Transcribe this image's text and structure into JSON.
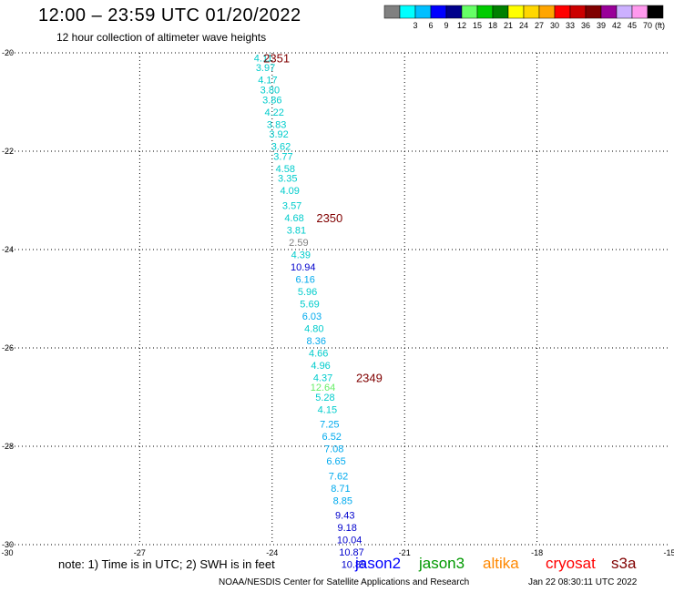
{
  "header": {
    "title": "12:00 – 23:59 UTC 01/20/2022",
    "subtitle": "12 hour collection of altimeter wave heights"
  },
  "colorbar": {
    "unit": "(ft)",
    "bins": [
      {
        "color": "#808080",
        "label": ""
      },
      {
        "color": "#00ffff",
        "label": "3"
      },
      {
        "color": "#00bfff",
        "label": "6"
      },
      {
        "color": "#0000ff",
        "label": "9"
      },
      {
        "color": "#00008b",
        "label": "12"
      },
      {
        "color": "#66ff66",
        "label": "15"
      },
      {
        "color": "#00cc00",
        "label": "18"
      },
      {
        "color": "#008000",
        "label": "21"
      },
      {
        "color": "#ffff00",
        "label": "24"
      },
      {
        "color": "#ffd700",
        "label": "27"
      },
      {
        "color": "#ffa500",
        "label": "30"
      },
      {
        "color": "#ff0000",
        "label": "33"
      },
      {
        "color": "#cc0000",
        "label": "36"
      },
      {
        "color": "#800000",
        "label": "39"
      },
      {
        "color": "#990099",
        "label": "42"
      },
      {
        "color": "#ccb0ff",
        "label": "45"
      },
      {
        "color": "#ff99ee",
        "label": "70"
      },
      {
        "color": "#000000",
        "label": ""
      }
    ]
  },
  "chart_data": {
    "type": "scatter",
    "xlim": [
      -30,
      -15
    ],
    "ylim": [
      -30,
      -20
    ],
    "xticks": [
      -30,
      -27,
      -24,
      -21,
      -18,
      -15
    ],
    "yticks": [
      -30,
      -28,
      -26,
      -24,
      -22,
      -20
    ],
    "grid": true,
    "points": [
      {
        "lon": -24.2,
        "lat": -20.1,
        "label": "4.11",
        "color": "#00cccc"
      },
      {
        "lon": -24.15,
        "lat": -20.3,
        "label": "3.97",
        "color": "#00cccc"
      },
      {
        "lon": -24.1,
        "lat": -20.55,
        "label": "4.17",
        "color": "#00cccc"
      },
      {
        "lon": -24.05,
        "lat": -20.75,
        "label": "3.80",
        "color": "#00cccc"
      },
      {
        "lon": -24.0,
        "lat": -20.95,
        "label": "3.86",
        "color": "#00cccc"
      },
      {
        "lon": -23.95,
        "lat": -21.2,
        "label": "4.22",
        "color": "#00cccc"
      },
      {
        "lon": -23.9,
        "lat": -21.45,
        "label": "3.83",
        "color": "#00cccc"
      },
      {
        "lon": -23.85,
        "lat": -21.65,
        "label": "3.92",
        "color": "#00cccc"
      },
      {
        "lon": -23.8,
        "lat": -21.9,
        "label": "3.62",
        "color": "#00cccc"
      },
      {
        "lon": -23.75,
        "lat": -22.1,
        "label": "3.77",
        "color": "#00cccc"
      },
      {
        "lon": -23.7,
        "lat": -22.35,
        "label": "4.58",
        "color": "#00cccc"
      },
      {
        "lon": -23.65,
        "lat": -22.55,
        "label": "3.35",
        "color": "#00cccc"
      },
      {
        "lon": -23.6,
        "lat": -22.8,
        "label": "4.09",
        "color": "#00cccc"
      },
      {
        "lon": -23.55,
        "lat": -23.1,
        "label": "3.57",
        "color": "#00cccc"
      },
      {
        "lon": -23.5,
        "lat": -23.35,
        "label": "4.68",
        "color": "#00cccc"
      },
      {
        "lon": -23.45,
        "lat": -23.6,
        "label": "3.81",
        "color": "#00cccc"
      },
      {
        "lon": -23.4,
        "lat": -23.85,
        "label": "2.59",
        "color": "#808080"
      },
      {
        "lon": -23.35,
        "lat": -24.1,
        "label": "4.39",
        "color": "#00cccc"
      },
      {
        "lon": -23.3,
        "lat": -24.35,
        "label": "10.94",
        "color": "#0000cc"
      },
      {
        "lon": -23.25,
        "lat": -24.6,
        "label": "6.16",
        "color": "#00aaee"
      },
      {
        "lon": -23.2,
        "lat": -24.85,
        "label": "5.96",
        "color": "#00cccc"
      },
      {
        "lon": -23.15,
        "lat": -25.1,
        "label": "5.69",
        "color": "#00cccc"
      },
      {
        "lon": -23.1,
        "lat": -25.35,
        "label": "6.03",
        "color": "#00aaee"
      },
      {
        "lon": -23.05,
        "lat": -25.6,
        "label": "4.80",
        "color": "#00cccc"
      },
      {
        "lon": -23.0,
        "lat": -25.85,
        "label": "8.36",
        "color": "#00aaee"
      },
      {
        "lon": -22.95,
        "lat": -26.1,
        "label": "4.66",
        "color": "#00cccc"
      },
      {
        "lon": -22.9,
        "lat": -26.35,
        "label": "4.96",
        "color": "#00cccc"
      },
      {
        "lon": -22.85,
        "lat": -26.6,
        "label": "4.37",
        "color": "#00cccc"
      },
      {
        "lon": -22.85,
        "lat": -26.8,
        "label": "12.64",
        "color": "#66ee66"
      },
      {
        "lon": -22.8,
        "lat": -27.0,
        "label": "5.28",
        "color": "#00cccc"
      },
      {
        "lon": -22.75,
        "lat": -27.25,
        "label": "4.15",
        "color": "#00cccc"
      },
      {
        "lon": -22.7,
        "lat": -27.55,
        "label": "7.25",
        "color": "#00aaee"
      },
      {
        "lon": -22.65,
        "lat": -27.8,
        "label": "6.52",
        "color": "#00aaee"
      },
      {
        "lon": -22.6,
        "lat": -28.05,
        "label": "7.08",
        "color": "#00aaee"
      },
      {
        "lon": -22.55,
        "lat": -28.3,
        "label": "6.65",
        "color": "#00aaee"
      },
      {
        "lon": -22.5,
        "lat": -28.6,
        "label": "7.62",
        "color": "#00aaee"
      },
      {
        "lon": -22.45,
        "lat": -28.85,
        "label": "8.71",
        "color": "#00aaee"
      },
      {
        "lon": -22.4,
        "lat": -29.1,
        "label": "8.85",
        "color": "#00aaee"
      },
      {
        "lon": -22.35,
        "lat": -29.4,
        "label": "9.43",
        "color": "#0000cc"
      },
      {
        "lon": -22.3,
        "lat": -29.65,
        "label": "9.18",
        "color": "#0000cc"
      },
      {
        "lon": -22.25,
        "lat": -29.9,
        "label": "10.04",
        "color": "#0000cc"
      },
      {
        "lon": -22.2,
        "lat": -30.15,
        "label": "10.87",
        "color": "#0000cc"
      },
      {
        "lon": -22.15,
        "lat": -30.4,
        "label": "10.89",
        "color": "#0000cc"
      }
    ],
    "pass_labels": [
      {
        "lon": -23.9,
        "lat": -20.1,
        "label": "2351",
        "color": "#800000"
      },
      {
        "lon": -22.7,
        "lat": -23.35,
        "label": "2350",
        "color": "#800000"
      },
      {
        "lon": -21.8,
        "lat": -26.6,
        "label": "2349",
        "color": "#800000"
      }
    ]
  },
  "footer": {
    "note": "note: 1) Time is in UTC; 2) SWH is in feet",
    "satellites": [
      {
        "name": "jason2",
        "color": "#0000ff"
      },
      {
        "name": "jason3",
        "color": "#009900"
      },
      {
        "name": "altika",
        "color": "#ff8800"
      },
      {
        "name": "cryosat",
        "color": "#ff0000"
      },
      {
        "name": "s3a",
        "color": "#800000"
      }
    ],
    "credit": "NOAA/NESDIS Center for Satellite Applications and Research",
    "timestamp": "Jan 22 08:30:11 UTC 2022"
  }
}
